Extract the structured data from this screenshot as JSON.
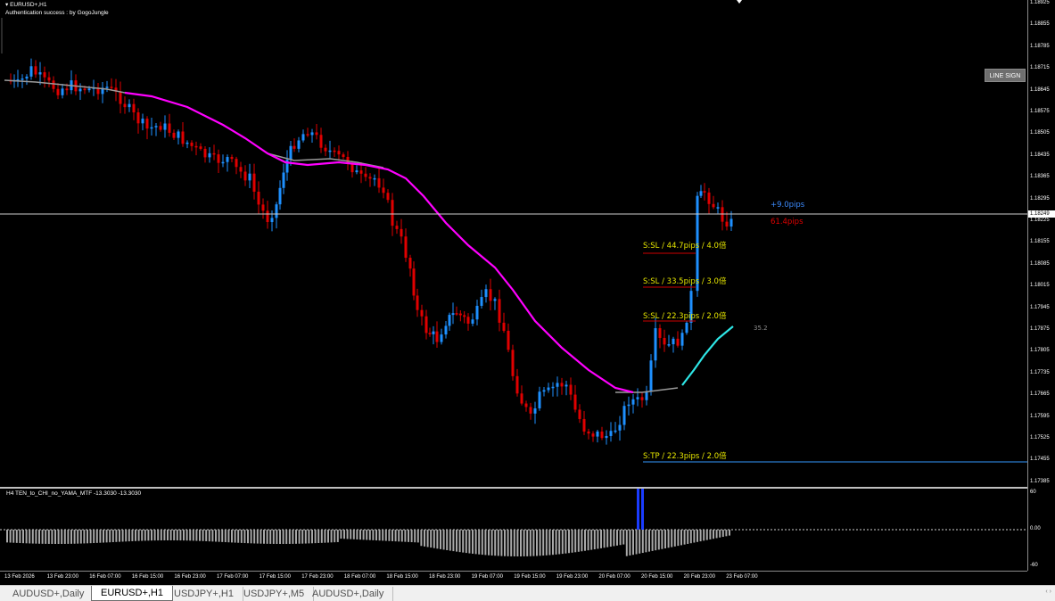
{
  "chart": {
    "symbol_label": "EURUSD+,H1",
    "auth_text": "Authentication success : by GogoJungle",
    "line_sign_button": "LINE SIGN",
    "current_price": "1.18249",
    "pips_up": "+9.0pips",
    "pips_down": "61.4pips",
    "levels": [
      "S:SL / 44.7pips / 4.0倍",
      "S:SL / 33.5pips / 3.0倍",
      "S:SL / 22.3pips / 2.0倍",
      "S:TP / 22.3pips / 2.0倍"
    ],
    "cyan_value": "35.2",
    "colors": {
      "bull": "#1e90ff",
      "bear": "#e00000",
      "ma_line": "#ff00ff",
      "projection": "#2ee6e6",
      "tp_line": "#3399ff",
      "sl_line": "#cc0000"
    }
  },
  "price_axis": {
    "ticks": [
      "1.18925",
      "1.18855",
      "1.18785",
      "1.18715",
      "1.18645",
      "1.18575",
      "1.18505",
      "1.18435",
      "1.18365",
      "1.18295",
      "1.18225",
      "1.18155",
      "1.18085",
      "1.18015",
      "1.17945",
      "1.17875",
      "1.17805",
      "1.17735",
      "1.17665",
      "1.17595",
      "1.17525",
      "1.17455",
      "1.17385"
    ]
  },
  "indicator": {
    "title": "H4  TEN_to_CHI_no_YAMA_MTF  -13.3030 -13.3030",
    "axis_top": "60",
    "axis_mid": "0.00",
    "axis_bottom": "-60"
  },
  "time_axis": {
    "labels": [
      "13 Feb 2026",
      "13 Feb 23:00",
      "16 Feb 07:00",
      "16 Feb 15:00",
      "16 Feb 23:00",
      "17 Feb 07:00",
      "17 Feb 15:00",
      "17 Feb 23:00",
      "18 Feb 07:00",
      "18 Feb 15:00",
      "18 Feb 23:00",
      "19 Feb 07:00",
      "19 Feb 15:00",
      "19 Feb 23:00",
      "20 Feb 07:00",
      "20 Feb 15:00",
      "20 Feb 23:00",
      "23 Feb 07:00"
    ]
  },
  "tabs": [
    {
      "label": "AUDUSD+,Daily",
      "active": false
    },
    {
      "label": "EURUSD+,H1",
      "active": true
    },
    {
      "label": "USDJPY+,H1",
      "active": false
    },
    {
      "label": "USDJPY+,M5",
      "active": false
    },
    {
      "label": "AUDUSD+,Daily",
      "active": false
    }
  ]
}
